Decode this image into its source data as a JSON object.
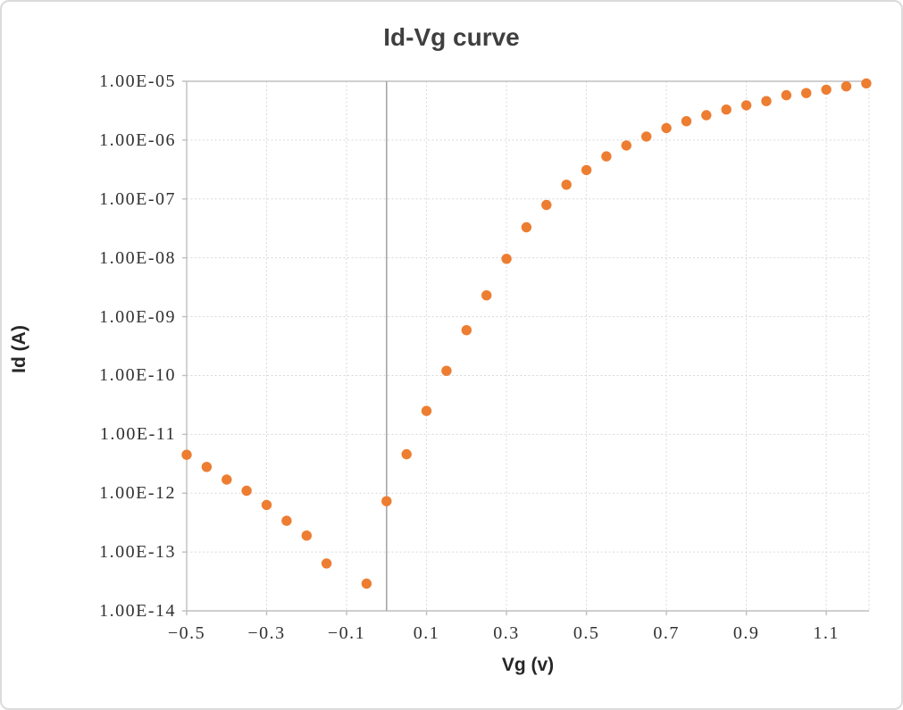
{
  "chart_data": {
    "type": "scatter",
    "title": "Id-Vg curve",
    "xlabel": "Vg (v)",
    "ylabel": "Id (A)",
    "legend": "none",
    "grid": "dashed light-gray, both axes",
    "x_axis": {
      "min": -0.5,
      "max": 1.207,
      "tick_values": [
        -0.5,
        -0.3,
        -0.1,
        0.1,
        0.3,
        0.5,
        0.7,
        0.9,
        1.1
      ],
      "tick_labels": [
        "−0.5",
        "−0.3",
        "−0.1",
        "0.1",
        "0.3",
        "0.5",
        "0.7",
        "0.9",
        "1.1"
      ],
      "zero_axis_line": true
    },
    "y_axis": {
      "scale": "log",
      "max_exp": -5,
      "min_exp": -14,
      "tick_labels": [
        "1.00E-05",
        "1.00E-06",
        "1.00E-07",
        "1.00E-08",
        "1.00E-09",
        "1.00E-10",
        "1.00E-11",
        "1.00E-12",
        "1.00E-13",
        "1.00E-14"
      ]
    },
    "series": [
      {
        "name": "Id",
        "marker": "circle",
        "color": "#ED7D31",
        "points": [
          {
            "vg": -0.5,
            "id": 4.5e-12
          },
          {
            "vg": -0.45,
            "id": 2.8e-12
          },
          {
            "vg": -0.4,
            "id": 1.7e-12
          },
          {
            "vg": -0.35,
            "id": 1.1e-12
          },
          {
            "vg": -0.3,
            "id": 6.3e-13
          },
          {
            "vg": -0.25,
            "id": 3.4e-13
          },
          {
            "vg": -0.2,
            "id": 1.9e-13
          },
          {
            "vg": -0.15,
            "id": 6.4e-14
          },
          {
            "vg": -0.05,
            "id": 2.9e-14
          },
          {
            "vg": 0.0,
            "id": 7.3e-13
          },
          {
            "vg": 0.05,
            "id": 4.6e-12
          },
          {
            "vg": 0.1,
            "id": 2.5e-11
          },
          {
            "vg": 0.15,
            "id": 1.2e-10
          },
          {
            "vg": 0.2,
            "id": 5.9e-10
          },
          {
            "vg": 0.25,
            "id": 2.3e-09
          },
          {
            "vg": 0.3,
            "id": 9.6e-09
          },
          {
            "vg": 0.35,
            "id": 3.3e-08
          },
          {
            "vg": 0.4,
            "id": 7.9e-08
          },
          {
            "vg": 0.45,
            "id": 1.75e-07
          },
          {
            "vg": 0.5,
            "id": 3.1e-07
          },
          {
            "vg": 0.55,
            "id": 5.3e-07
          },
          {
            "vg": 0.6,
            "id": 8.1e-07
          },
          {
            "vg": 0.65,
            "id": 1.15e-06
          },
          {
            "vg": 0.7,
            "id": 1.6e-06
          },
          {
            "vg": 0.75,
            "id": 2.1e-06
          },
          {
            "vg": 0.8,
            "id": 2.65e-06
          },
          {
            "vg": 0.85,
            "id": 3.3e-06
          },
          {
            "vg": 0.9,
            "id": 3.9e-06
          },
          {
            "vg": 0.95,
            "id": 4.6e-06
          },
          {
            "vg": 1.0,
            "id": 5.8e-06
          },
          {
            "vg": 1.05,
            "id": 6.3e-06
          },
          {
            "vg": 1.1,
            "id": 7.2e-06
          },
          {
            "vg": 1.15,
            "id": 8.2e-06
          },
          {
            "vg": 1.2,
            "id": 9.2e-06
          }
        ]
      }
    ]
  },
  "style": {
    "point_color": "#ED7D31",
    "gridline_color": "#D9D9D9",
    "axis_line_color": "#BFBFBF",
    "zero_line_color": "#A6A6A6",
    "tick_label_color": "#303030",
    "title_color": "#3F3F3F",
    "border_color": "#DBDBDB",
    "background": "#FFFFFF"
  }
}
